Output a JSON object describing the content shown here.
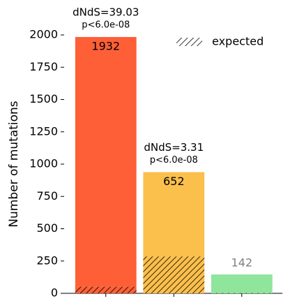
{
  "chart_data": {
    "type": "stacked_bar",
    "ylabel": "Number of mutations",
    "categories": [
      null,
      null,
      null
    ],
    "colors": [
      "#fe5f37",
      "#fbbf4c",
      "#8ee59b"
    ],
    "series": [
      {
        "name": "expected",
        "hatch": true,
        "values": [
          52,
          286,
          4
        ]
      },
      {
        "values": [
          1932,
          652,
          142
        ]
      }
    ],
    "dnds_labels": [
      "dNdS=39.03",
      "dNdS=3.31",
      null
    ],
    "p_labels": [
      "p<6.0e-08",
      "p<6.0e-08",
      null
    ],
    "ylim": [
      0,
      2000
    ],
    "yticks": [
      0,
      250,
      500,
      750,
      1000,
      1250,
      1500,
      1750,
      2000
    ],
    "legend": "upper right"
  }
}
